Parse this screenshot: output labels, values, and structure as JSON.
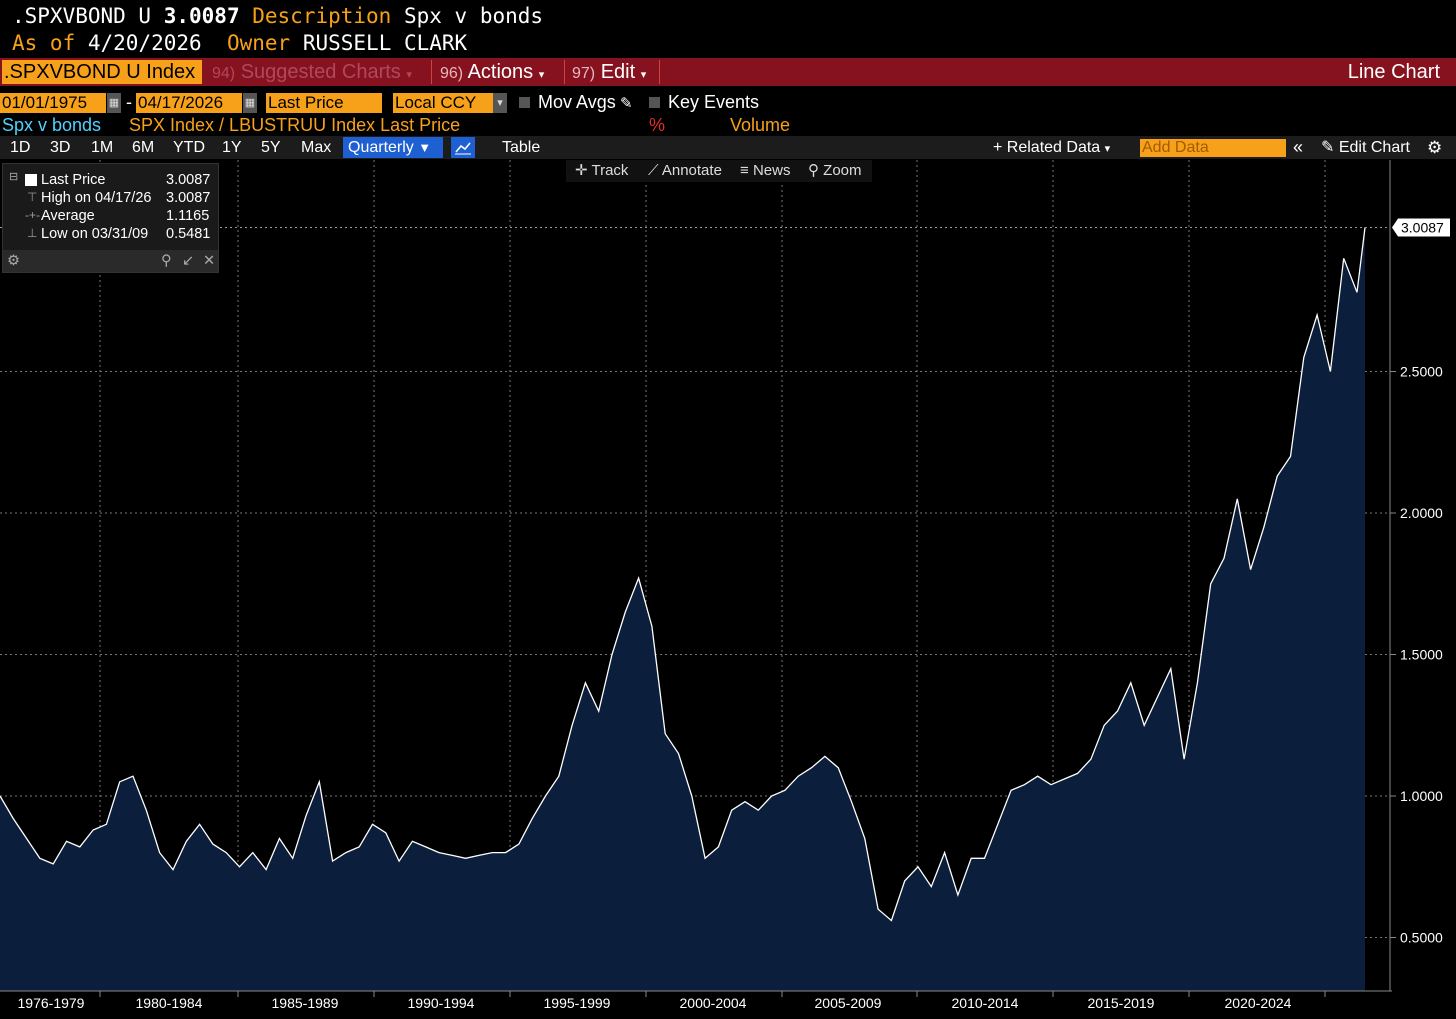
{
  "header": {
    "ticker": ".SPXVBOND U",
    "price": "3.0087",
    "description_label": "Description",
    "description": "Spx v bonds",
    "asof_label": "As of",
    "asof_date": "4/20/2026",
    "owner_label": "Owner",
    "owner": "RUSSELL CLARK"
  },
  "menubar": {
    "security": ".SPXVBOND U Index",
    "suggested_num": "94)",
    "suggested": "Suggested Charts",
    "actions_num": "96)",
    "actions": "Actions",
    "edit_num": "97)",
    "edit": "Edit",
    "chart_type": "Line Chart"
  },
  "controls": {
    "start_date": "01/01/1975",
    "end_date": "04/17/2026",
    "dash": "-",
    "field": "Last Price",
    "currency": "Local CCY",
    "mov_avgs": "Mov Avgs",
    "key_events": "Key Events"
  },
  "series_row": {
    "name": "Spx v bonds",
    "formula": "SPX Index / LBUSTRUU Index Last Price",
    "pct": "%",
    "volume": "Volume"
  },
  "toolbar": {
    "periods": [
      "1D",
      "3D",
      "1M",
      "6M",
      "YTD",
      "1Y",
      "5Y",
      "Max"
    ],
    "frequency": "Quarterly",
    "table": "Table",
    "related_data": "Related Data",
    "add_data_placeholder": "Add Data",
    "edit_chart": "Edit Chart"
  },
  "chart_tools": [
    "Track",
    "Annotate",
    "News",
    "Zoom"
  ],
  "legend": {
    "rows": [
      {
        "label": "Last Price",
        "value": "3.0087"
      },
      {
        "label": "High on 04/17/26",
        "value": "3.0087"
      },
      {
        "label": "Average",
        "value": "1.1165"
      },
      {
        "label": "Low on 03/31/09",
        "value": "0.5481"
      }
    ]
  },
  "colors": {
    "background": "#000000",
    "amber": "#f7a11a",
    "menubar": "#861220",
    "area_fill": "#0b1f3c",
    "line": "#ffffff",
    "accent_blue": "#1e5fd1",
    "cyan": "#4fd2ff"
  },
  "chart_data": {
    "type": "area",
    "title": "",
    "xlabel": "",
    "ylabel": "",
    "ylim": [
      0.3,
      3.3
    ],
    "yticks": [
      "0.5000",
      "1.0000",
      "1.5000",
      "2.0000",
      "2.5000"
    ],
    "x_categories": [
      "1976-1979",
      "1980-1984",
      "1985-1989",
      "1990-1994",
      "1995-1999",
      "2000-2004",
      "2005-2009",
      "2010-2014",
      "2015-2019",
      "2020-2024"
    ],
    "last_value_label": "3.0087",
    "x": [
      1975.0,
      1975.5,
      1976.0,
      1976.5,
      1977.0,
      1977.5,
      1978.0,
      1978.5,
      1979.0,
      1979.5,
      1980.0,
      1980.5,
      1981.0,
      1981.5,
      1982.0,
      1982.5,
      1983.0,
      1983.5,
      1984.0,
      1984.5,
      1985.0,
      1985.5,
      1986.0,
      1986.5,
      1987.0,
      1987.5,
      1988.0,
      1988.5,
      1989.0,
      1989.5,
      1990.0,
      1990.5,
      1991.0,
      1991.5,
      1992.0,
      1992.5,
      1993.0,
      1993.5,
      1994.0,
      1994.5,
      1995.0,
      1995.5,
      1996.0,
      1996.5,
      1997.0,
      1997.5,
      1998.0,
      1998.5,
      1999.0,
      1999.5,
      2000.0,
      2000.5,
      2001.0,
      2001.5,
      2002.0,
      2002.5,
      2003.0,
      2003.5,
      2004.0,
      2004.5,
      2005.0,
      2005.5,
      2006.0,
      2006.5,
      2007.0,
      2007.5,
      2008.0,
      2008.5,
      2009.0,
      2009.5,
      2010.0,
      2010.5,
      2011.0,
      2011.5,
      2012.0,
      2012.5,
      2013.0,
      2013.5,
      2014.0,
      2014.5,
      2015.0,
      2015.5,
      2016.0,
      2016.5,
      2017.0,
      2017.5,
      2018.0,
      2018.5,
      2019.0,
      2019.5,
      2020.0,
      2020.5,
      2021.0,
      2021.5,
      2022.0,
      2022.5,
      2023.0,
      2023.5,
      2024.0,
      2024.5,
      2025.0,
      2025.5,
      2026.0,
      2026.3
    ],
    "values": [
      1.0,
      0.92,
      0.85,
      0.78,
      0.76,
      0.84,
      0.82,
      0.88,
      0.9,
      1.05,
      1.07,
      0.95,
      0.8,
      0.74,
      0.84,
      0.9,
      0.83,
      0.8,
      0.75,
      0.8,
      0.74,
      0.85,
      0.78,
      0.93,
      1.05,
      0.77,
      0.8,
      0.82,
      0.9,
      0.87,
      0.77,
      0.84,
      0.82,
      0.8,
      0.79,
      0.78,
      0.79,
      0.8,
      0.8,
      0.83,
      0.92,
      1.0,
      1.07,
      1.25,
      1.4,
      1.3,
      1.5,
      1.65,
      1.77,
      1.6,
      1.22,
      1.15,
      1.0,
      0.78,
      0.82,
      0.95,
      0.98,
      0.95,
      1.0,
      1.02,
      1.07,
      1.1,
      1.14,
      1.1,
      0.98,
      0.85,
      0.6,
      0.56,
      0.7,
      0.75,
      0.68,
      0.8,
      0.65,
      0.78,
      0.78,
      0.9,
      1.02,
      1.04,
      1.07,
      1.04,
      1.06,
      1.08,
      1.13,
      1.25,
      1.3,
      1.4,
      1.25,
      1.35,
      1.45,
      1.13,
      1.4,
      1.75,
      1.84,
      2.05,
      1.8,
      1.95,
      2.13,
      2.2,
      2.55,
      2.7,
      2.5,
      2.9,
      2.78,
      3.0087
    ]
  }
}
